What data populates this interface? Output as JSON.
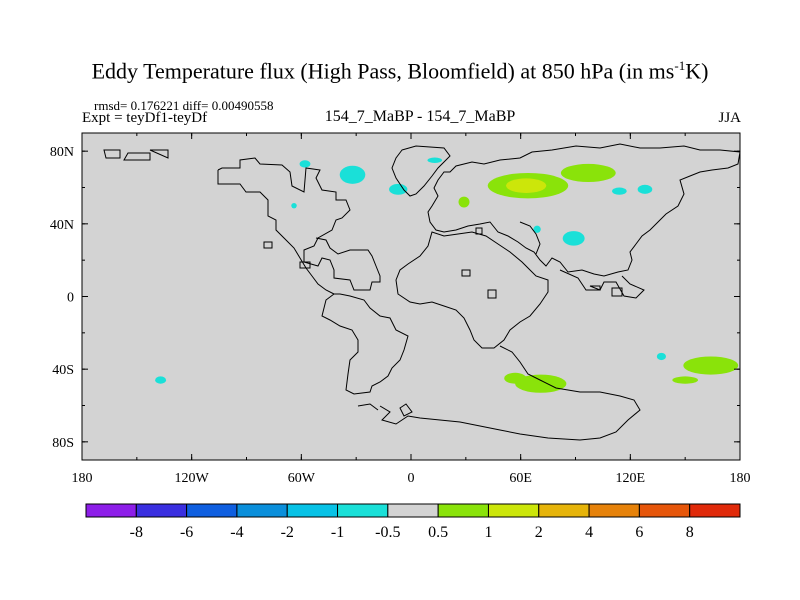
{
  "header": {
    "title_main": "Eddy Temperature flux (High Pass, Bloomfield) at 850 hPa (in ms",
    "title_sup": "-1",
    "title_end": "K)",
    "rmsd_text": "rmsd= 0.176221 diff= 0.00490558",
    "expt_text": "Expt = teyDf1-teyDf",
    "center_label": "154_7_MaBP - 154_7_MaBP",
    "season": "JJA"
  },
  "colors": {
    "background": "#d3d3d3",
    "coast": "#000000"
  },
  "chart_data": {
    "type": "heatmap",
    "projection": "cylindrical-equidistant",
    "xlim": [
      -180,
      180
    ],
    "ylim": [
      -90,
      90
    ],
    "x_ticks": [
      {
        "value": -180,
        "label": "180"
      },
      {
        "value": -120,
        "label": "120W"
      },
      {
        "value": -60,
        "label": "60W"
      },
      {
        "value": 0,
        "label": "0"
      },
      {
        "value": 60,
        "label": "60E"
      },
      {
        "value": 120,
        "label": "120E"
      },
      {
        "value": 180,
        "label": "180"
      }
    ],
    "y_ticks": [
      {
        "value": 80,
        "label": "80N"
      },
      {
        "value": 40,
        "label": "40N"
      },
      {
        "value": 0,
        "label": "0"
      },
      {
        "value": -40,
        "label": "40S"
      },
      {
        "value": -80,
        "label": "80S"
      }
    ],
    "colorbar": {
      "labels": [
        "-8",
        "-6",
        "-4",
        "-2",
        "-1",
        "-0.5",
        "0.5",
        "1",
        "2",
        "4",
        "6",
        "8"
      ],
      "colors": [
        "#8d1ee8",
        "#3a2fe0",
        "#0f5fe0",
        "#0a8fdb",
        "#08c2e6",
        "#1ae0d8",
        "#d3d3d3",
        "#8ae30a",
        "#cce60a",
        "#e6b40a",
        "#e6820a",
        "#e6560a",
        "#e02a0a"
      ]
    },
    "contours": [
      {
        "color": "#1ae0d8",
        "lon": -58,
        "lat": 73,
        "rlon": 3,
        "rlat": 2
      },
      {
        "color": "#1ae0d8",
        "lon": -32,
        "lat": 67,
        "rlon": 7,
        "rlat": 5
      },
      {
        "color": "#1ae0d8",
        "lon": 13,
        "lat": 75,
        "rlon": 4,
        "rlat": 1.5
      },
      {
        "color": "#1ae0d8",
        "lon": -7,
        "lat": 59,
        "rlon": 5,
        "rlat": 3
      },
      {
        "color": "#1ae0d8",
        "lon": -64,
        "lat": 50,
        "rlon": 1.5,
        "rlat": 1.5
      },
      {
        "color": "#1ae0d8",
        "lon": 114,
        "lat": 58,
        "rlon": 4,
        "rlat": 2
      },
      {
        "color": "#1ae0d8",
        "lon": 128,
        "lat": 59,
        "rlon": 4,
        "rlat": 2.5
      },
      {
        "color": "#1ae0d8",
        "lon": 89,
        "lat": 32,
        "rlon": 6,
        "rlat": 4
      },
      {
        "color": "#1ae0d8",
        "lon": 69,
        "lat": 37,
        "rlon": 2,
        "rlat": 2
      },
      {
        "color": "#1ae0d8",
        "lon": -137,
        "lat": -46,
        "rlon": 3,
        "rlat": 2
      },
      {
        "color": "#1ae0d8",
        "lon": 137,
        "lat": -33,
        "rlon": 2.5,
        "rlat": 2
      },
      {
        "color": "#8ae30a",
        "lon": 64,
        "lat": 61,
        "rlon": 22,
        "rlat": 7
      },
      {
        "color": "#8ae30a",
        "lon": 97,
        "lat": 68,
        "rlon": 15,
        "rlat": 5
      },
      {
        "color": "#8ae30a",
        "lon": 29,
        "lat": 52,
        "rlon": 3,
        "rlat": 3
      },
      {
        "color": "#cce60a",
        "lon": 63,
        "lat": 61,
        "rlon": 11,
        "rlat": 4
      },
      {
        "color": "#8ae30a",
        "lon": 71,
        "lat": -48,
        "rlon": 14,
        "rlat": 5
      },
      {
        "color": "#8ae30a",
        "lon": 57,
        "lat": -45,
        "rlon": 6,
        "rlat": 3
      },
      {
        "color": "#8ae30a",
        "lon": 164,
        "lat": -38,
        "rlon": 15,
        "rlat": 5
      },
      {
        "color": "#8ae30a",
        "lon": 150,
        "lat": -46,
        "rlon": 7,
        "rlat": 2
      }
    ]
  }
}
